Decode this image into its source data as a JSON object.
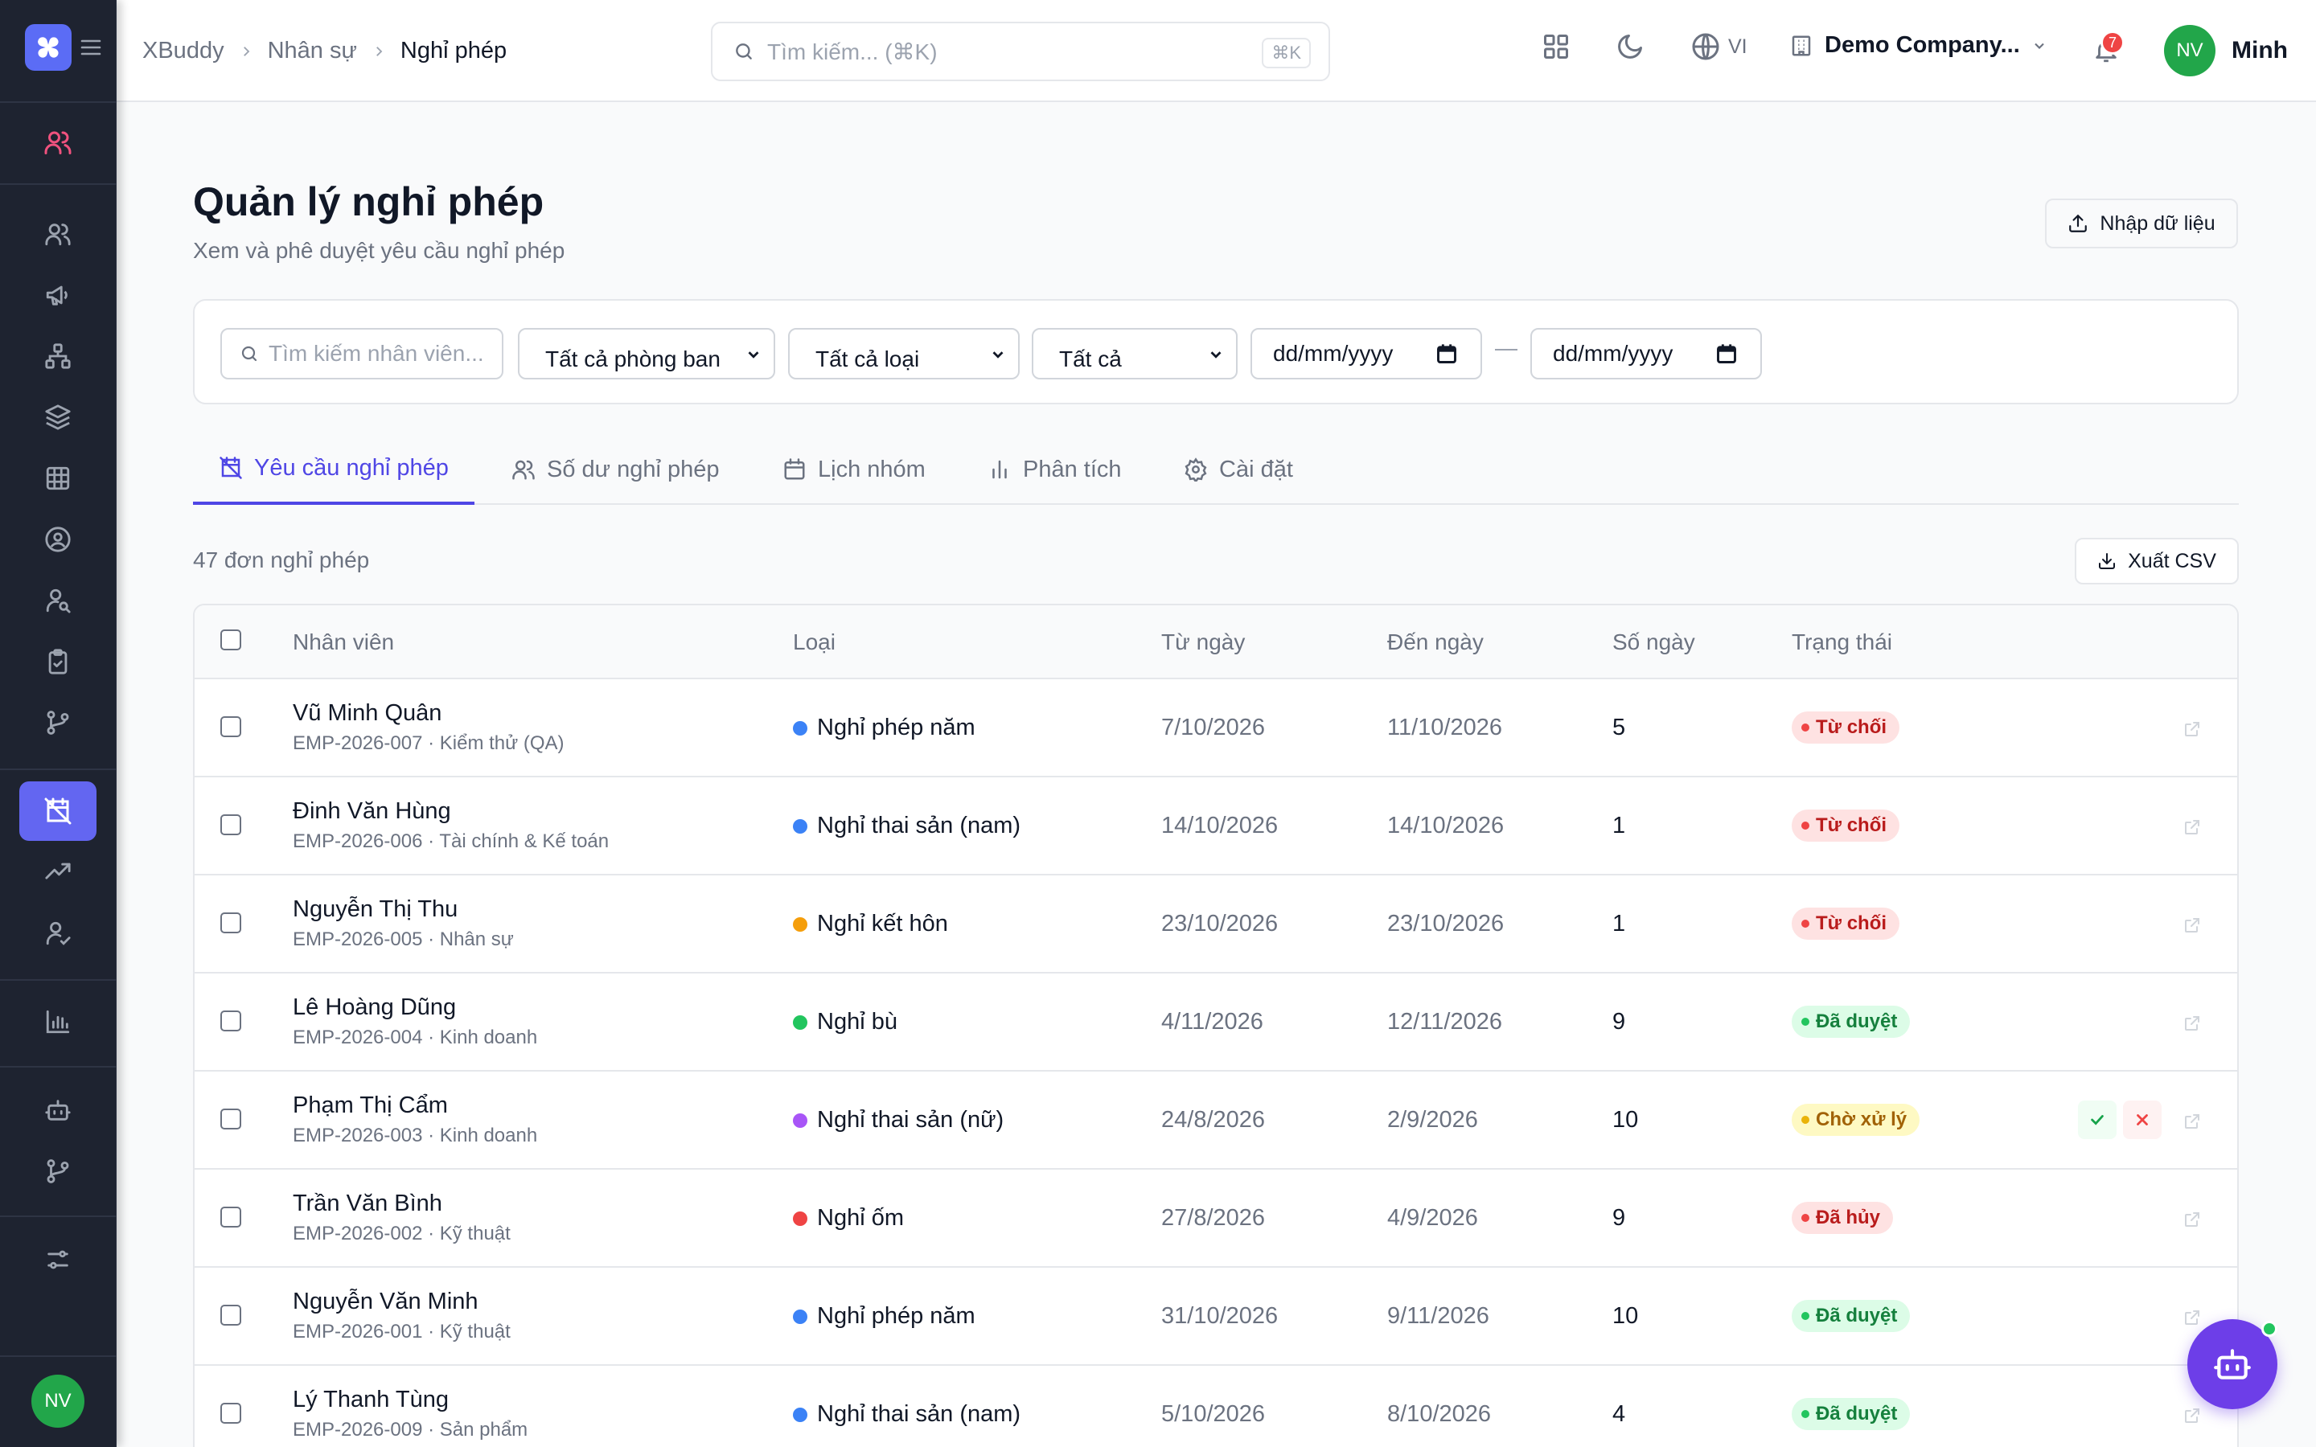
{
  "breadcrumb": {
    "root": "XBuddy",
    "section": "Nhân sự",
    "current": "Nghỉ phép"
  },
  "search": {
    "placeholder": "Tìm kiếm... (⌘K)",
    "shortcut": "⌘K"
  },
  "topbar": {
    "language": "VI",
    "company": "Demo Company...",
    "notification_count": "7",
    "user_initials": "NV",
    "user_name": "Minh"
  },
  "sidebar": {
    "avatar_initials": "NV",
    "active_item": "leave"
  },
  "page": {
    "title": "Quản lý nghỉ phép",
    "subtitle": "Xem và phê duyệt yêu cầu nghỉ phép",
    "import_label": "Nhập dữ liệu"
  },
  "filters": {
    "search_placeholder": "Tìm kiếm nhân viên...",
    "department": "Tất cả phòng ban",
    "type": "Tất cả loại",
    "status": "Tất cả",
    "date_from": "dd/mm/yyyy",
    "date_to": "dd/mm/yyyy"
  },
  "tabs": [
    {
      "label": "Yêu cầu nghỉ phép",
      "active": true
    },
    {
      "label": "Số dư nghỉ phép"
    },
    {
      "label": "Lịch nhóm"
    },
    {
      "label": "Phân tích"
    },
    {
      "label": "Cài đặt"
    }
  ],
  "list": {
    "count_label": "47 đơn nghỉ phép",
    "export_label": "Xuất CSV"
  },
  "columns": [
    "Nhân viên",
    "Loại",
    "Từ ngày",
    "Đến ngày",
    "Số ngày",
    "Trạng thái"
  ],
  "rows": [
    {
      "name": "Vũ Minh Quân",
      "sub": "EMP-2026-007 · Kiểm thử (QA)",
      "type": "Nghỉ phép năm",
      "type_color": "#3b82f6",
      "from": "7/10/2026",
      "to": "11/10/2026",
      "days": "5",
      "status": "Từ chối",
      "status_kind": "rejected"
    },
    {
      "name": "Đinh Văn Hùng",
      "sub": "EMP-2026-006 · Tài chính & Kế toán",
      "type": "Nghỉ thai sản (nam)",
      "type_color": "#3b82f6",
      "from": "14/10/2026",
      "to": "14/10/2026",
      "days": "1",
      "status": "Từ chối",
      "status_kind": "rejected"
    },
    {
      "name": "Nguyễn Thị Thu",
      "sub": "EMP-2026-005 · Nhân sự",
      "type": "Nghỉ kết hôn",
      "type_color": "#f59e0b",
      "from": "23/10/2026",
      "to": "23/10/2026",
      "days": "1",
      "status": "Từ chối",
      "status_kind": "rejected"
    },
    {
      "name": "Lê Hoàng Dũng",
      "sub": "EMP-2026-004 · Kinh doanh",
      "type": "Nghỉ bù",
      "type_color": "#22c55e",
      "from": "4/11/2026",
      "to": "12/11/2026",
      "days": "9",
      "status": "Đã duyệt",
      "status_kind": "approved"
    },
    {
      "name": "Phạm Thị Cẩm",
      "sub": "EMP-2026-003 · Kinh doanh",
      "type": "Nghỉ thai sản (nữ)",
      "type_color": "#a855f7",
      "from": "24/8/2026",
      "to": "2/9/2026",
      "days": "10",
      "status": "Chờ xử lý",
      "status_kind": "pending"
    },
    {
      "name": "Trần Văn Bình",
      "sub": "EMP-2026-002 · Kỹ thuật",
      "type": "Nghỉ ốm",
      "type_color": "#ef4444",
      "from": "27/8/2026",
      "to": "4/9/2026",
      "days": "9",
      "status": "Đã hủy",
      "status_kind": "cancelled"
    },
    {
      "name": "Nguyễn Văn Minh",
      "sub": "EMP-2026-001 · Kỹ thuật",
      "type": "Nghỉ phép năm",
      "type_color": "#3b82f6",
      "from": "31/10/2026",
      "to": "9/11/2026",
      "days": "10",
      "status": "Đã duyệt",
      "status_kind": "approved"
    },
    {
      "name": "Lý Thanh Tùng",
      "sub": "EMP-2026-009 · Sản phẩm",
      "type": "Nghỉ thai sản (nam)",
      "type_color": "#3b82f6",
      "from": "5/10/2026",
      "to": "8/10/2026",
      "days": "4",
      "status": "Đã duyệt",
      "status_kind": "approved"
    }
  ],
  "colors": {
    "accent": "#6366f1",
    "sidebar_bg": "#1e2330",
    "rejected": "#ef4444",
    "approved": "#22c55e",
    "pending": "#eab308"
  }
}
